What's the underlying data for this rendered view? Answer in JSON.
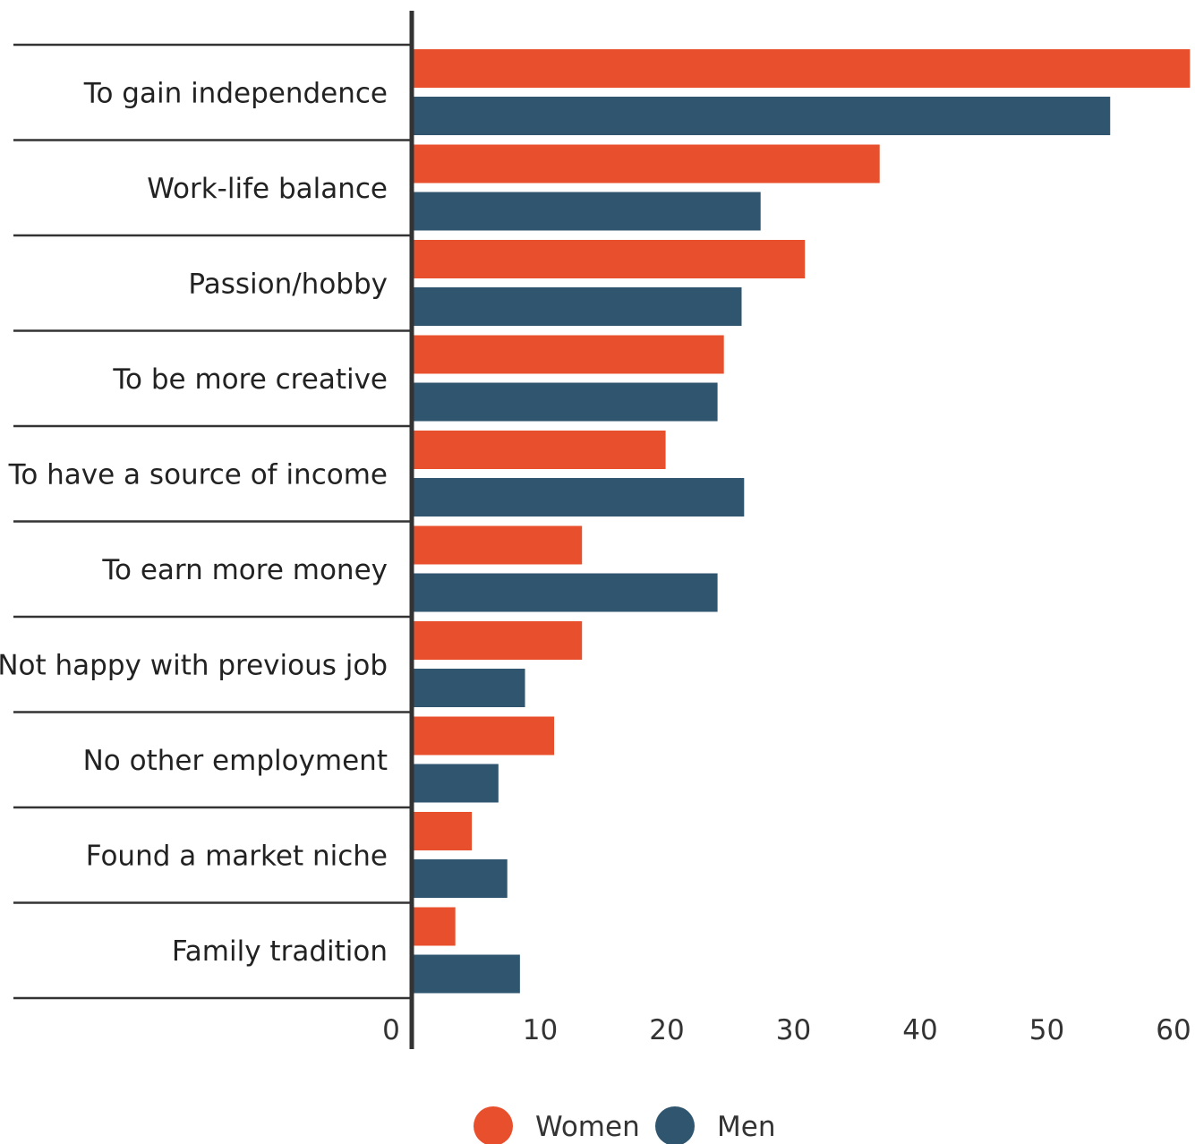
{
  "chart_data": {
    "type": "bar",
    "orientation": "horizontal",
    "categories": [
      "To gain independence",
      "Work-life balance",
      "Passion/hobby",
      "To be more creative",
      "To have a source of income",
      "To earn more money",
      "Not happy with previous job",
      "No other employment",
      "Found a market niche",
      "Family tradition"
    ],
    "series": [
      {
        "name": "Women",
        "color": "#e8502d",
        "values": [
          61.3,
          36.8,
          30.9,
          24.5,
          19.9,
          13.3,
          13.3,
          11.1,
          4.6,
          3.3
        ]
      },
      {
        "name": "Men",
        "color": "#30566f",
        "values": [
          55.0,
          27.4,
          25.9,
          24.0,
          26.1,
          24.0,
          8.8,
          6.7,
          7.4,
          8.4
        ]
      }
    ],
    "x_ticks": [
      "0",
      "10",
      "20",
      "30",
      "40",
      "50",
      "60"
    ],
    "xlim": [
      0,
      61.5
    ],
    "grid": false,
    "legend": "bottom-center"
  }
}
